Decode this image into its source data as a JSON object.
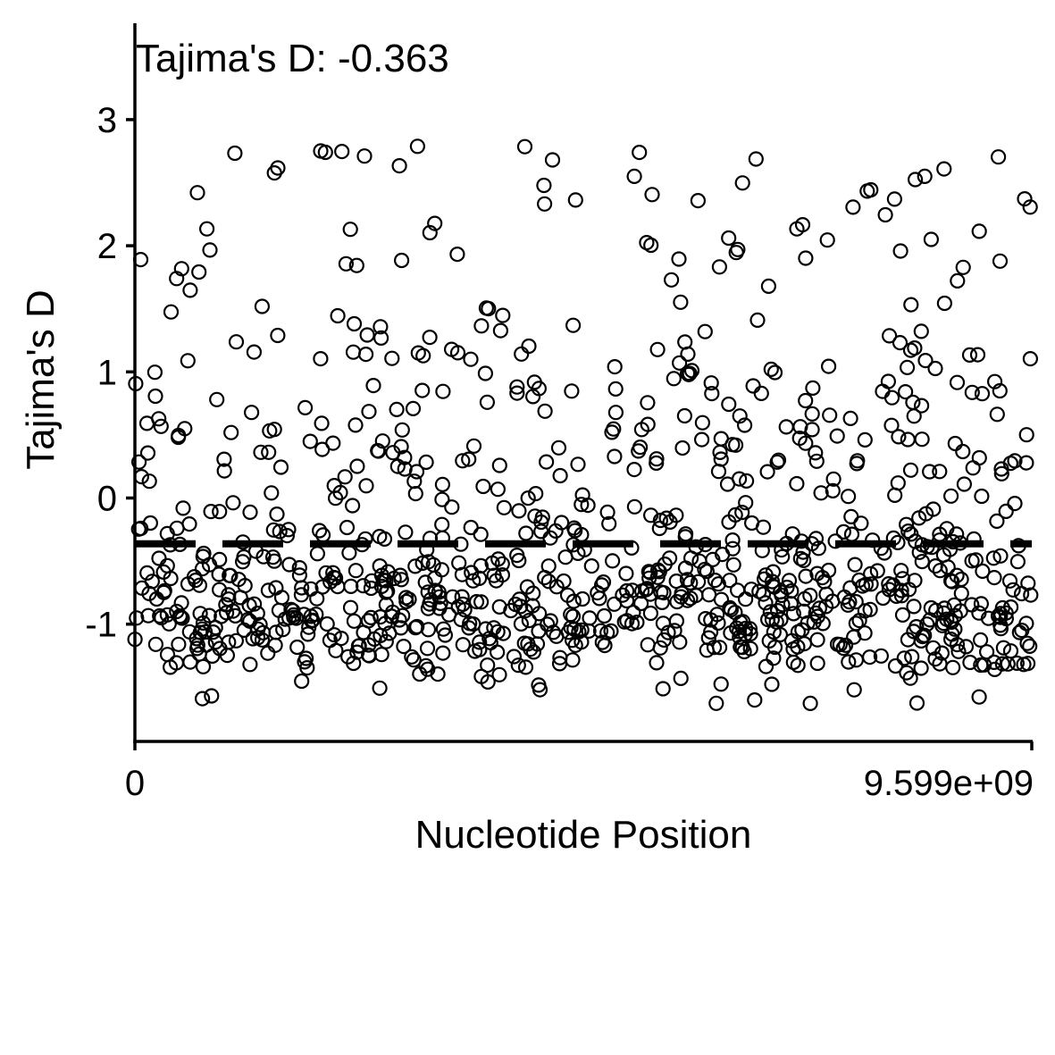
{
  "chart_data": {
    "type": "scatter",
    "annotation": "Tajima's D: -0.363",
    "xlabel": "Nucleotide Position",
    "ylabel": "Tajima's D",
    "xlim": [
      0,
      9599000000
    ],
    "ylim": [
      -1.93,
      3.75
    ],
    "x_ticks": [
      0,
      9599000000
    ],
    "x_tick_labels": [
      "0",
      "9.599e+09"
    ],
    "y_ticks": [
      -1,
      0,
      1,
      2,
      3
    ],
    "y_tick_labels": [
      "-1",
      "0",
      "1",
      "2",
      "3"
    ],
    "mean_line": -0.363,
    "n_points": 1024,
    "seed": 20240607,
    "point_style": "open-circle",
    "colors": {
      "points": "#000000",
      "axes": "#000000",
      "mean_line": "#000000"
    },
    "grid": false,
    "legend": "none"
  }
}
